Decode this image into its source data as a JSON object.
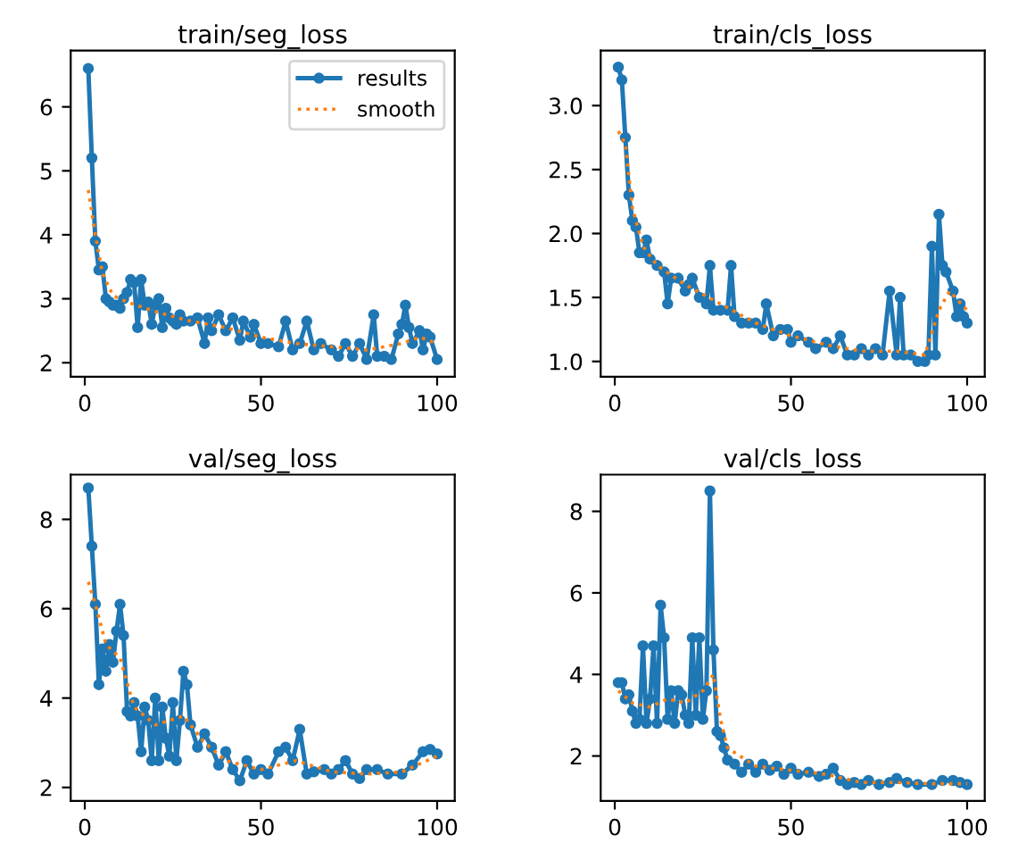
{
  "chart_data": [
    {
      "type": "line",
      "title": "train/seg_loss",
      "xlim": [
        -4,
        105
      ],
      "xticks": [
        0,
        50,
        100
      ],
      "ylim": [
        1.78,
        6.88
      ],
      "yticks": [
        2,
        3,
        4,
        5,
        6
      ],
      "legend": "top right",
      "series": [
        {
          "name": "results",
          "color": "#1f77b4",
          "marker": "circle",
          "line_style": "solid",
          "x": [
            1,
            2,
            3,
            4,
            5,
            6,
            7,
            8,
            9,
            10,
            11,
            12,
            13,
            14,
            15,
            16,
            17,
            18,
            19,
            20,
            21,
            22,
            23,
            24,
            25,
            26,
            27,
            28,
            30,
            32,
            34,
            35,
            36,
            38,
            40,
            42,
            44,
            45,
            47,
            48,
            50,
            52,
            55,
            57,
            59,
            61,
            63,
            65,
            67,
            70,
            72,
            74,
            76,
            78,
            80,
            82,
            83,
            85,
            87,
            89,
            90,
            91,
            92,
            93,
            95,
            96,
            97,
            98,
            100
          ],
          "values": [
            6.6,
            5.2,
            3.9,
            3.45,
            3.5,
            3.0,
            2.95,
            2.9,
            2.9,
            2.85,
            3.0,
            3.1,
            3.3,
            3.25,
            2.55,
            3.3,
            2.9,
            2.95,
            2.6,
            2.9,
            3.0,
            2.55,
            2.85,
            2.7,
            2.65,
            2.6,
            2.75,
            2.65,
            2.65,
            2.7,
            2.3,
            2.7,
            2.5,
            2.75,
            2.5,
            2.7,
            2.35,
            2.65,
            2.4,
            2.6,
            2.3,
            2.3,
            2.25,
            2.65,
            2.2,
            2.3,
            2.65,
            2.2,
            2.3,
            2.2,
            2.1,
            2.3,
            2.1,
            2.3,
            2.05,
            2.75,
            2.1,
            2.1,
            2.05,
            2.45,
            2.6,
            2.9,
            2.55,
            2.3,
            2.5,
            2.2,
            2.45,
            2.4,
            2.05
          ]
        },
        {
          "name": "smooth",
          "color": "#ff7f0e",
          "marker": "none",
          "line_style": "dotted",
          "x": [
            1,
            3,
            5,
            8,
            12,
            20,
            30,
            40,
            50,
            60,
            70,
            80,
            90,
            95,
            100
          ],
          "values": [
            4.7,
            4.0,
            3.4,
            3.05,
            2.95,
            2.8,
            2.65,
            2.55,
            2.4,
            2.3,
            2.25,
            2.2,
            2.3,
            2.4,
            2.3
          ]
        }
      ]
    },
    {
      "type": "line",
      "title": "train/cls_loss",
      "xlim": [
        -4,
        105
      ],
      "xticks": [
        0,
        50,
        100
      ],
      "ylim": [
        0.88,
        3.43
      ],
      "yticks": [
        {
          "value": 1,
          "label": "1.0"
        },
        1.5,
        {
          "value": 2,
          "label": "2.0"
        },
        2.5,
        {
          "value": 3,
          "label": "3.0"
        }
      ],
      "series": [
        {
          "color": "#1f77b4",
          "marker": "circle",
          "line_style": "solid",
          "x": [
            1,
            2,
            3,
            4,
            5,
            6,
            7,
            8,
            9,
            10,
            12,
            14,
            15,
            16,
            18,
            20,
            21,
            22,
            24,
            26,
            27,
            28,
            30,
            32,
            33,
            34,
            36,
            38,
            40,
            42,
            43,
            45,
            47,
            49,
            50,
            52,
            55,
            57,
            60,
            62,
            64,
            66,
            68,
            70,
            72,
            74,
            76,
            78,
            80,
            81,
            82,
            84,
            86,
            88,
            89,
            90,
            91,
            92,
            93,
            94,
            96,
            97,
            98,
            99,
            100
          ],
          "values": [
            3.3,
            3.2,
            2.75,
            2.3,
            2.1,
            2.05,
            1.85,
            1.85,
            1.95,
            1.8,
            1.75,
            1.7,
            1.45,
            1.65,
            1.65,
            1.55,
            1.6,
            1.65,
            1.5,
            1.45,
            1.75,
            1.4,
            1.4,
            1.4,
            1.75,
            1.35,
            1.3,
            1.3,
            1.3,
            1.25,
            1.45,
            1.2,
            1.25,
            1.25,
            1.15,
            1.2,
            1.15,
            1.1,
            1.15,
            1.1,
            1.2,
            1.05,
            1.05,
            1.1,
            1.05,
            1.1,
            1.05,
            1.55,
            1.05,
            1.5,
            1.05,
            1.05,
            1.0,
            1.0,
            1.05,
            1.9,
            1.05,
            2.15,
            1.75,
            1.7,
            1.55,
            1.35,
            1.45,
            1.35,
            1.3
          ]
        },
        {
          "color": "#ff7f0e",
          "marker": "none",
          "line_style": "dotted",
          "x": [
            1,
            3,
            5,
            8,
            12,
            20,
            30,
            40,
            50,
            60,
            70,
            80,
            88,
            92,
            95,
            100
          ],
          "values": [
            2.8,
            2.7,
            2.2,
            1.9,
            1.75,
            1.6,
            1.45,
            1.3,
            1.2,
            1.13,
            1.08,
            1.08,
            1.05,
            1.4,
            1.55,
            1.4
          ]
        }
      ]
    },
    {
      "type": "line",
      "title": "val/seg_loss",
      "xlim": [
        -4,
        105
      ],
      "xticks": [
        0,
        50,
        100
      ],
      "ylim": [
        1.7,
        9.0
      ],
      "yticks": [
        2,
        4,
        6,
        8
      ],
      "series": [
        {
          "color": "#1f77b4",
          "marker": "circle",
          "line_style": "solid",
          "x": [
            1,
            2,
            3,
            4,
            5,
            6,
            7,
            8,
            9,
            10,
            11,
            12,
            13,
            14,
            15,
            16,
            17,
            18,
            19,
            20,
            21,
            22,
            23,
            24,
            25,
            26,
            27,
            28,
            29,
            30,
            32,
            34,
            36,
            38,
            40,
            42,
            44,
            46,
            48,
            50,
            52,
            55,
            57,
            59,
            61,
            63,
            65,
            68,
            70,
            72,
            74,
            76,
            78,
            80,
            83,
            86,
            90,
            93,
            96,
            98,
            100
          ],
          "values": [
            8.7,
            7.4,
            6.1,
            4.3,
            5.1,
            4.6,
            5.2,
            4.8,
            5.5,
            6.1,
            5.4,
            3.7,
            3.6,
            3.9,
            3.6,
            2.8,
            3.8,
            3.5,
            2.6,
            4.0,
            2.6,
            3.8,
            3.1,
            2.7,
            3.9,
            2.6,
            3.5,
            4.6,
            4.3,
            3.4,
            2.9,
            3.2,
            2.9,
            2.5,
            2.8,
            2.4,
            2.15,
            2.6,
            2.3,
            2.4,
            2.3,
            2.8,
            2.9,
            2.6,
            3.3,
            2.3,
            2.35,
            2.4,
            2.3,
            2.4,
            2.6,
            2.3,
            2.2,
            2.4,
            2.4,
            2.3,
            2.3,
            2.5,
            2.8,
            2.85,
            2.75
          ]
        },
        {
          "color": "#ff7f0e",
          "marker": "none",
          "line_style": "dotted",
          "x": [
            1,
            3,
            6,
            10,
            14,
            20,
            28,
            34,
            40,
            50,
            60,
            70,
            80,
            90,
            100
          ],
          "values": [
            6.6,
            6.1,
            5.2,
            4.9,
            3.8,
            3.4,
            3.6,
            3.0,
            2.6,
            2.4,
            2.6,
            2.35,
            2.3,
            2.35,
            2.7
          ]
        }
      ]
    },
    {
      "type": "line",
      "title": "val/cls_loss",
      "xlim": [
        -4,
        105
      ],
      "xticks": [
        0,
        50,
        100
      ],
      "ylim": [
        0.9,
        8.9
      ],
      "yticks": [
        2,
        4,
        6,
        8
      ],
      "series": [
        {
          "color": "#1f77b4",
          "marker": "circle",
          "line_style": "solid",
          "x": [
            1,
            2,
            3,
            4,
            5,
            6,
            7,
            8,
            9,
            10,
            11,
            12,
            13,
            14,
            15,
            16,
            17,
            18,
            19,
            20,
            21,
            22,
            23,
            24,
            25,
            26,
            27,
            28,
            29,
            30,
            31,
            32,
            34,
            36,
            38,
            40,
            42,
            44,
            46,
            48,
            50,
            52,
            55,
            58,
            60,
            62,
            64,
            66,
            68,
            70,
            72,
            75,
            78,
            80,
            83,
            86,
            90,
            93,
            96,
            98,
            100
          ],
          "values": [
            3.8,
            3.8,
            3.4,
            3.5,
            3.1,
            2.8,
            2.9,
            4.7,
            2.8,
            3.4,
            4.7,
            2.8,
            5.7,
            4.9,
            2.9,
            3.6,
            2.8,
            3.6,
            3.5,
            3.0,
            2.8,
            4.9,
            3.0,
            4.9,
            2.9,
            3.6,
            8.5,
            4.6,
            2.6,
            2.5,
            2.2,
            1.9,
            1.8,
            1.6,
            1.8,
            1.6,
            1.8,
            1.65,
            1.75,
            1.55,
            1.7,
            1.55,
            1.6,
            1.5,
            1.55,
            1.7,
            1.4,
            1.3,
            1.35,
            1.3,
            1.4,
            1.3,
            1.35,
            1.45,
            1.35,
            1.3,
            1.3,
            1.4,
            1.4,
            1.35,
            1.3
          ]
        },
        {
          "color": "#ff7f0e",
          "marker": "none",
          "line_style": "dotted",
          "x": [
            1,
            5,
            10,
            15,
            20,
            25,
            28,
            30,
            32,
            40,
            50,
            60,
            70,
            80,
            90,
            100
          ],
          "values": [
            3.6,
            3.3,
            3.2,
            3.4,
            3.3,
            3.6,
            4.0,
            2.9,
            2.2,
            1.75,
            1.65,
            1.55,
            1.35,
            1.35,
            1.32,
            1.32
          ]
        }
      ]
    }
  ]
}
